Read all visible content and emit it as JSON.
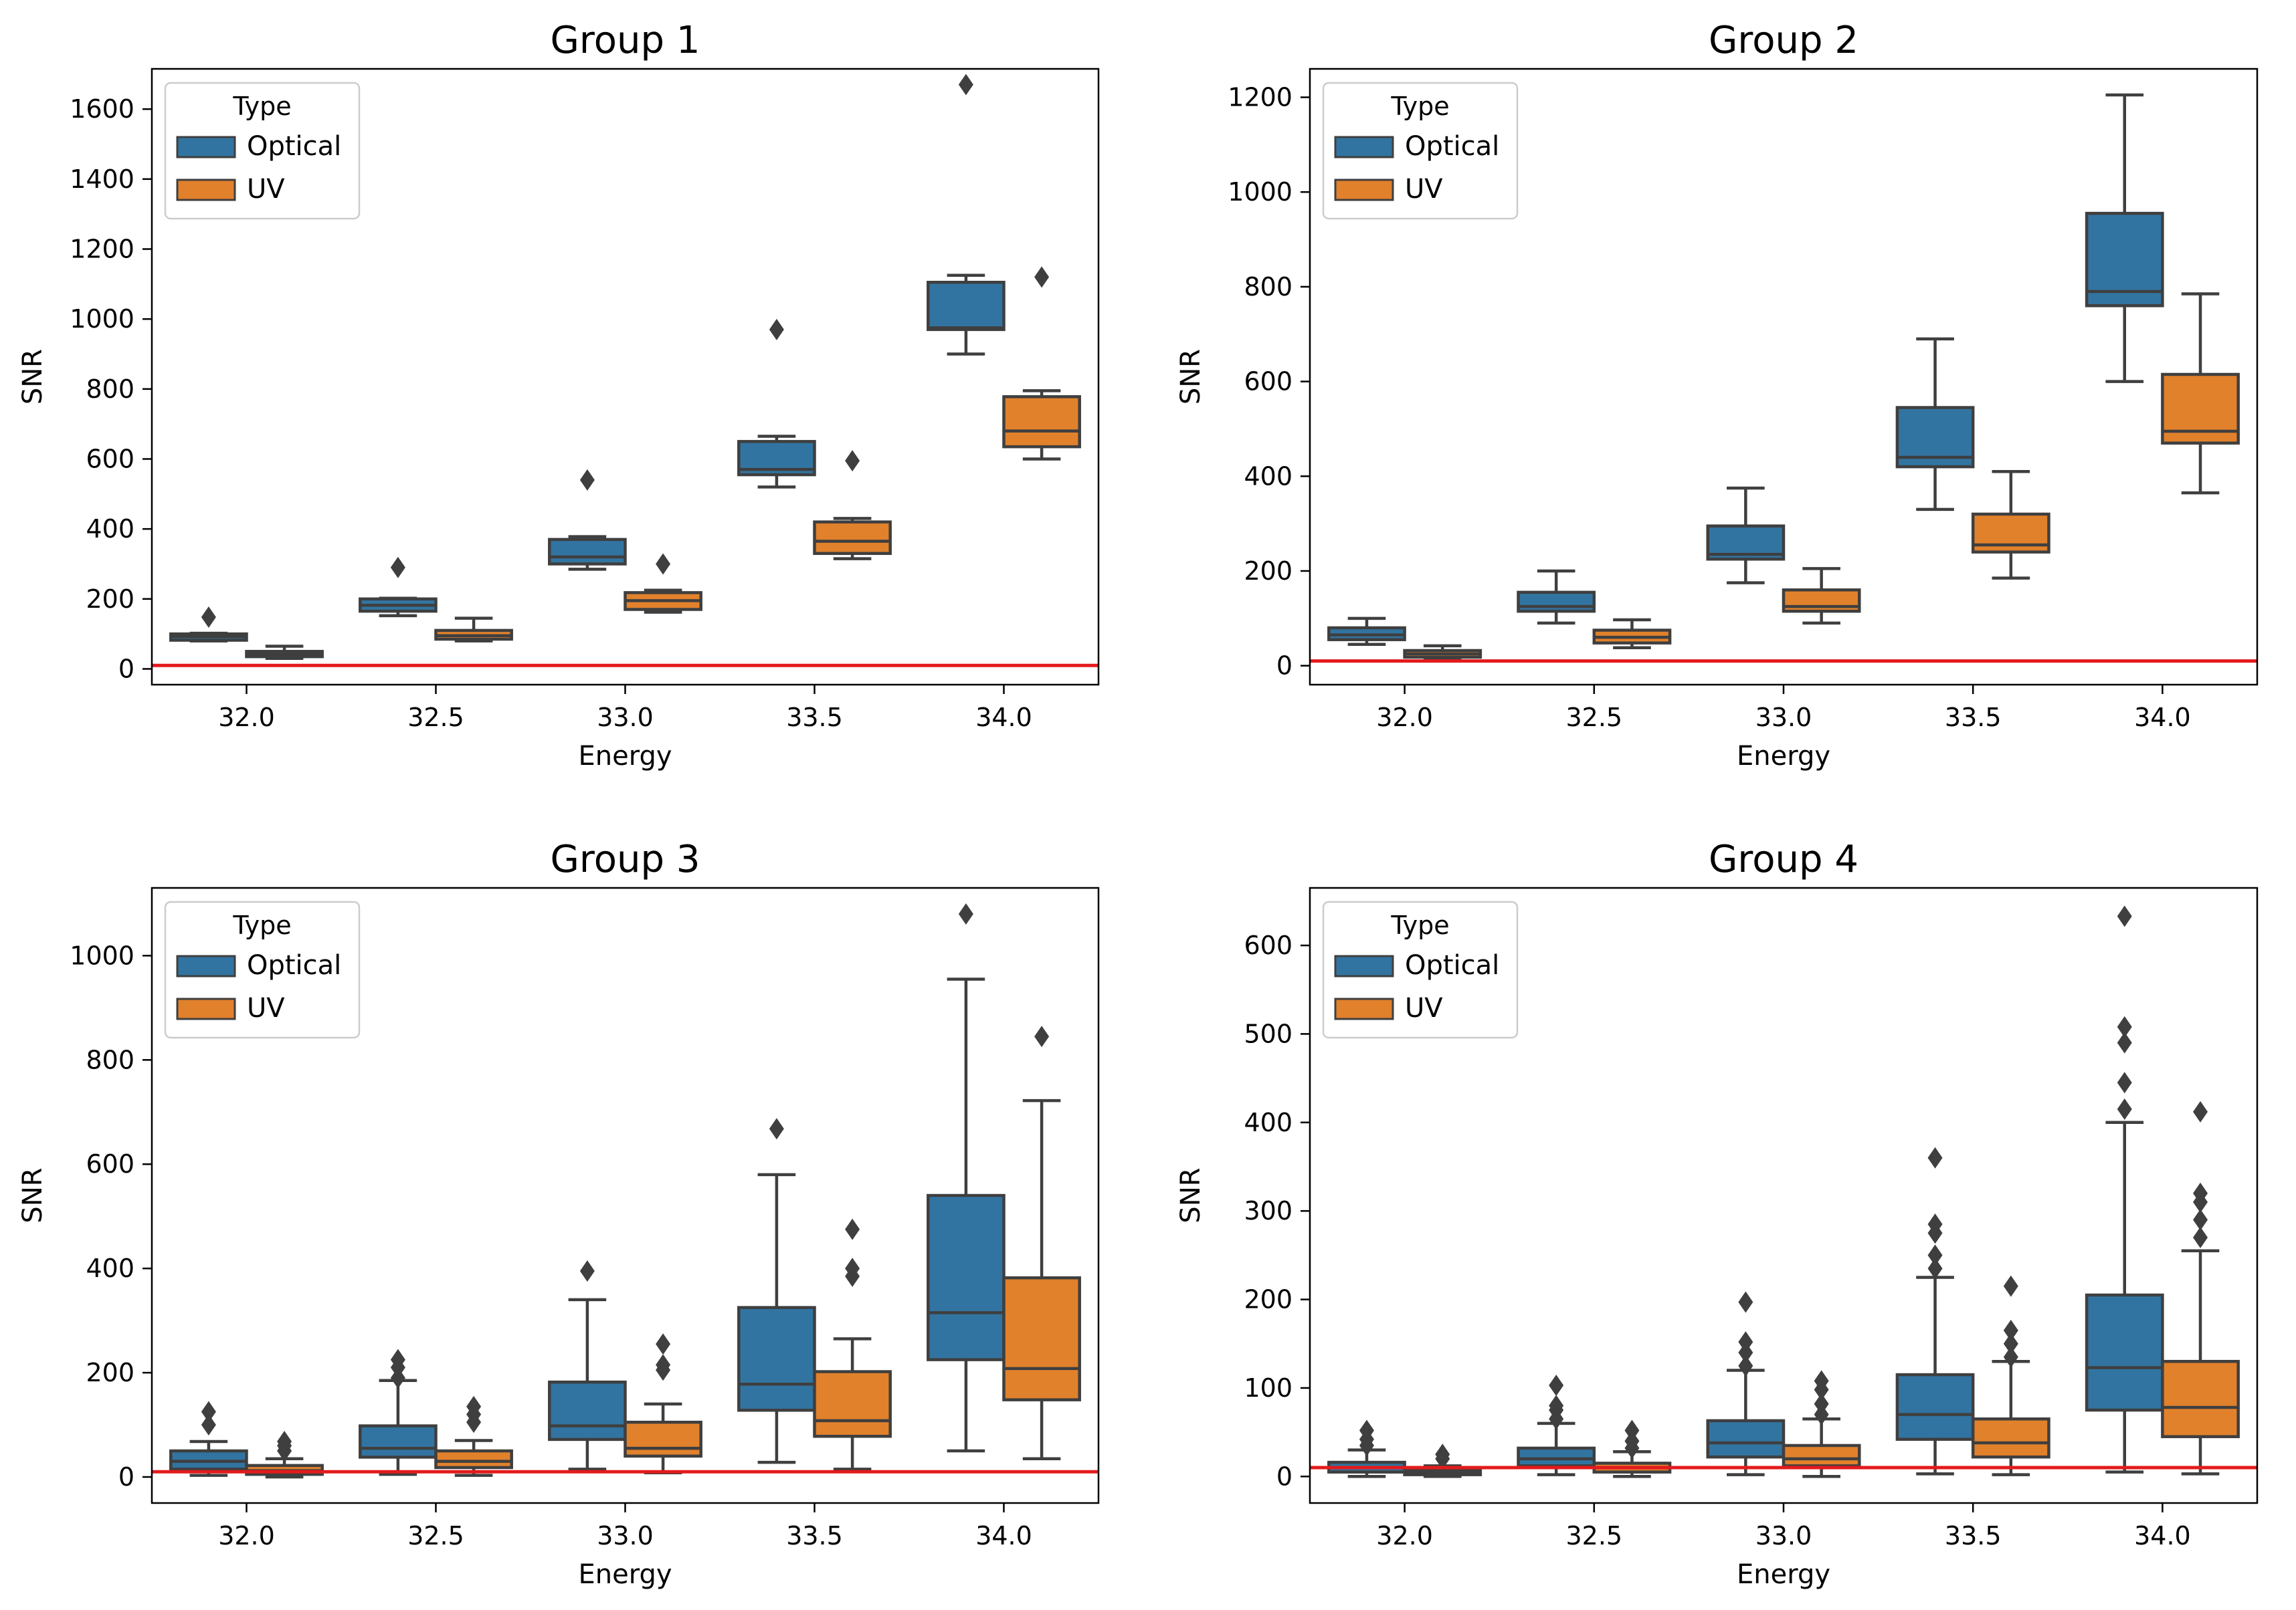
{
  "colors": {
    "optical": "#3274a1",
    "uv": "#e1812c",
    "line": "#3f3f3f",
    "threshold": "#e41a1c",
    "frame": "#000000"
  },
  "chart_data": [
    {
      "type": "box",
      "title": "Group  1",
      "xlabel": "Energy",
      "ylabel": "SNR",
      "categories": [
        "32.0",
        "32.5",
        "33.0",
        "33.5",
        "34.0"
      ],
      "ylim": [
        -45,
        1715
      ],
      "yticks": [
        "0",
        "200",
        "400",
        "600",
        "800",
        "1000",
        "1200",
        "1400",
        "1600"
      ],
      "threshold": 10,
      "legend": {
        "title": "Type",
        "position": "upper left",
        "entries": [
          "Optical",
          "UV"
        ]
      },
      "series": [
        {
          "name": "Optical",
          "boxes": [
            {
              "whislo": 80,
              "q1": 82,
              "med": 92,
              "q3": 100,
              "whishi": 102,
              "fliers": [
                148
              ]
            },
            {
              "whislo": 152,
              "q1": 165,
              "med": 182,
              "q3": 200,
              "whishi": 202,
              "fliers": [
                290
              ]
            },
            {
              "whislo": 285,
              "q1": 300,
              "med": 320,
              "q3": 370,
              "whishi": 378,
              "fliers": [
                540
              ]
            },
            {
              "whislo": 520,
              "q1": 555,
              "med": 570,
              "q3": 650,
              "whishi": 665,
              "fliers": [
                970
              ]
            },
            {
              "whislo": 900,
              "q1": 970,
              "med": 975,
              "q3": 1105,
              "whishi": 1125,
              "fliers": [
                1670
              ]
            }
          ]
        },
        {
          "name": "UV",
          "boxes": [
            {
              "whislo": 30,
              "q1": 35,
              "med": 42,
              "q3": 50,
              "whishi": 65,
              "fliers": []
            },
            {
              "whislo": 80,
              "q1": 85,
              "med": 95,
              "q3": 110,
              "whishi": 145,
              "fliers": []
            },
            {
              "whislo": 162,
              "q1": 170,
              "med": 195,
              "q3": 218,
              "whishi": 225,
              "fliers": [
                300
              ]
            },
            {
              "whislo": 315,
              "q1": 330,
              "med": 365,
              "q3": 420,
              "whishi": 430,
              "fliers": [
                595
              ]
            },
            {
              "whislo": 600,
              "q1": 635,
              "med": 680,
              "q3": 778,
              "whishi": 795,
              "fliers": [
                1120
              ]
            }
          ]
        }
      ]
    },
    {
      "type": "box",
      "title": "Group  2",
      "xlabel": "Energy",
      "ylabel": "SNR",
      "categories": [
        "32.0",
        "32.5",
        "33.0",
        "33.5",
        "34.0"
      ],
      "ylim": [
        -40,
        1260
      ],
      "yticks": [
        "0",
        "200",
        "400",
        "600",
        "800",
        "1000",
        "1200"
      ],
      "threshold": 10,
      "legend": {
        "title": "Type",
        "position": "upper left",
        "entries": [
          "Optical",
          "UV"
        ]
      },
      "series": [
        {
          "name": "Optical",
          "boxes": [
            {
              "whislo": 45,
              "q1": 55,
              "med": 65,
              "q3": 80,
              "whishi": 100,
              "fliers": []
            },
            {
              "whislo": 90,
              "q1": 115,
              "med": 125,
              "q3": 155,
              "whishi": 200,
              "fliers": []
            },
            {
              "whislo": 175,
              "q1": 225,
              "med": 235,
              "q3": 295,
              "whishi": 375,
              "fliers": []
            },
            {
              "whislo": 330,
              "q1": 420,
              "med": 440,
              "q3": 545,
              "whishi": 690,
              "fliers": []
            },
            {
              "whislo": 600,
              "q1": 760,
              "med": 790,
              "q3": 955,
              "whishi": 1205,
              "fliers": []
            }
          ]
        },
        {
          "name": "UV",
          "boxes": [
            {
              "whislo": 12,
              "q1": 18,
              "med": 25,
              "q3": 32,
              "whishi": 42,
              "fliers": []
            },
            {
              "whislo": 38,
              "q1": 48,
              "med": 60,
              "q3": 75,
              "whishi": 97,
              "fliers": []
            },
            {
              "whislo": 90,
              "q1": 115,
              "med": 125,
              "q3": 160,
              "whishi": 205,
              "fliers": []
            },
            {
              "whislo": 185,
              "q1": 240,
              "med": 255,
              "q3": 320,
              "whishi": 410,
              "fliers": []
            },
            {
              "whislo": 365,
              "q1": 470,
              "med": 495,
              "q3": 615,
              "whishi": 785,
              "fliers": []
            }
          ]
        }
      ]
    },
    {
      "type": "box",
      "title": "Group  3",
      "xlabel": "Energy",
      "ylabel": "SNR",
      "categories": [
        "32.0",
        "32.5",
        "33.0",
        "33.5",
        "34.0"
      ],
      "ylim": [
        -50,
        1130
      ],
      "yticks": [
        "0",
        "200",
        "400",
        "600",
        "800",
        "1000"
      ],
      "threshold": 10,
      "legend": {
        "title": "Type",
        "position": "upper left",
        "entries": [
          "Optical",
          "UV"
        ]
      },
      "series": [
        {
          "name": "Optical",
          "boxes": [
            {
              "whislo": 3,
              "q1": 15,
              "med": 30,
              "q3": 50,
              "whishi": 68,
              "fliers": [
                100,
                125
              ]
            },
            {
              "whislo": 5,
              "q1": 38,
              "med": 55,
              "q3": 98,
              "whishi": 185,
              "fliers": [
                190,
                210,
                225
              ]
            },
            {
              "whislo": 15,
              "q1": 72,
              "med": 98,
              "q3": 182,
              "whishi": 340,
              "fliers": [
                395
              ]
            },
            {
              "whislo": 28,
              "q1": 128,
              "med": 178,
              "q3": 325,
              "whishi": 580,
              "fliers": [
                668
              ]
            },
            {
              "whislo": 50,
              "q1": 225,
              "med": 315,
              "q3": 540,
              "whishi": 955,
              "fliers": [
                1080
              ]
            }
          ]
        },
        {
          "name": "UV",
          "boxes": [
            {
              "whislo": 0,
              "q1": 5,
              "med": 12,
              "q3": 22,
              "whishi": 35,
              "fliers": [
                50,
                60,
                68
              ]
            },
            {
              "whislo": 3,
              "q1": 18,
              "med": 30,
              "q3": 50,
              "whishi": 70,
              "fliers": [
                105,
                120,
                135
              ]
            },
            {
              "whislo": 8,
              "q1": 40,
              "med": 55,
              "q3": 105,
              "whishi": 140,
              "fliers": [
                205,
                215,
                255
              ]
            },
            {
              "whislo": 15,
              "q1": 78,
              "med": 108,
              "q3": 202,
              "whishi": 265,
              "fliers": [
                385,
                400,
                475
              ]
            },
            {
              "whislo": 35,
              "q1": 148,
              "med": 208,
              "q3": 382,
              "whishi": 722,
              "fliers": [
                845
              ]
            }
          ]
        }
      ]
    },
    {
      "type": "box",
      "title": "Group  4",
      "xlabel": "Energy",
      "ylabel": "SNR",
      "categories": [
        "32.0",
        "32.5",
        "33.0",
        "33.5",
        "34.0"
      ],
      "ylim": [
        -30,
        665
      ],
      "yticks": [
        "0",
        "100",
        "200",
        "300",
        "400",
        "500",
        "600"
      ],
      "threshold": 10,
      "legend": {
        "title": "Type",
        "position": "upper left",
        "entries": [
          "Optical",
          "UV"
        ]
      },
      "series": [
        {
          "name": "Optical",
          "boxes": [
            {
              "whislo": 0,
              "q1": 5,
              "med": 10,
              "q3": 16,
              "whishi": 30,
              "fliers": [
                35,
                42,
                52
              ]
            },
            {
              "whislo": 2,
              "q1": 12,
              "med": 20,
              "q3": 32,
              "whishi": 60,
              "fliers": [
                65,
                75,
                80,
                103
              ]
            },
            {
              "whislo": 2,
              "q1": 22,
              "med": 38,
              "q3": 63,
              "whishi": 120,
              "fliers": [
                125,
                140,
                152,
                197
              ]
            },
            {
              "whislo": 3,
              "q1": 42,
              "med": 70,
              "q3": 115,
              "whishi": 225,
              "fliers": [
                235,
                250,
                275,
                285,
                360
              ]
            },
            {
              "whislo": 5,
              "q1": 75,
              "med": 123,
              "q3": 205,
              "whishi": 400,
              "fliers": [
                415,
                445,
                490,
                508,
                633
              ]
            }
          ]
        },
        {
          "name": "UV",
          "boxes": [
            {
              "whislo": 0,
              "q1": 2,
              "med": 5,
              "q3": 8,
              "whishi": 12,
              "fliers": [
                20,
                25
              ]
            },
            {
              "whislo": 0,
              "q1": 5,
              "med": 10,
              "q3": 15,
              "whishi": 28,
              "fliers": [
                32,
                40,
                52
              ]
            },
            {
              "whislo": 0,
              "q1": 12,
              "med": 20,
              "q3": 35,
              "whishi": 65,
              "fliers": [
                70,
                82,
                98,
                108
              ]
            },
            {
              "whislo": 2,
              "q1": 22,
              "med": 38,
              "q3": 65,
              "whishi": 130,
              "fliers": [
                135,
                150,
                165,
                215
              ]
            },
            {
              "whislo": 3,
              "q1": 45,
              "med": 78,
              "q3": 130,
              "whishi": 255,
              "fliers": [
                270,
                290,
                310,
                320,
                412
              ]
            }
          ]
        }
      ]
    }
  ]
}
